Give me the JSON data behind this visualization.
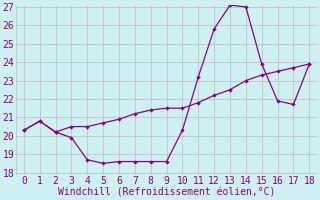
{
  "line1_x": [
    0,
    1,
    2,
    3,
    4,
    5,
    6,
    7,
    8,
    9,
    10,
    11,
    12,
    13,
    14,
    15,
    16,
    17,
    18
  ],
  "line1_y": [
    20.3,
    20.8,
    20.2,
    19.9,
    18.7,
    18.5,
    18.6,
    18.6,
    18.6,
    18.6,
    20.3,
    23.2,
    25.8,
    27.1,
    27.0,
    23.9,
    21.9,
    21.7,
    23.9
  ],
  "line2_x": [
    0,
    1,
    2,
    3,
    4,
    5,
    6,
    7,
    8,
    9,
    10,
    11,
    12,
    13,
    14,
    15,
    16,
    17,
    18
  ],
  "line2_y": [
    20.3,
    20.8,
    20.2,
    20.5,
    20.5,
    20.7,
    20.9,
    21.2,
    21.4,
    21.5,
    21.5,
    21.8,
    22.2,
    22.5,
    23.0,
    23.3,
    23.5,
    23.7,
    23.9
  ],
  "color": "#880088",
  "bg_color": "#cff0f0",
  "grid_color": "#bbbbbb",
  "xlabel": "Windchill (Refroidissement éolien,°C)",
  "ylim": [
    18,
    27
  ],
  "xlim": [
    -0.5,
    18.5
  ],
  "yticks": [
    18,
    19,
    20,
    21,
    22,
    23,
    24,
    25,
    26,
    27
  ],
  "xticks": [
    0,
    1,
    2,
    3,
    4,
    5,
    6,
    7,
    8,
    9,
    10,
    11,
    12,
    13,
    14,
    15,
    16,
    17,
    18
  ],
  "tick_fontsize": 7,
  "xlabel_fontsize": 7
}
